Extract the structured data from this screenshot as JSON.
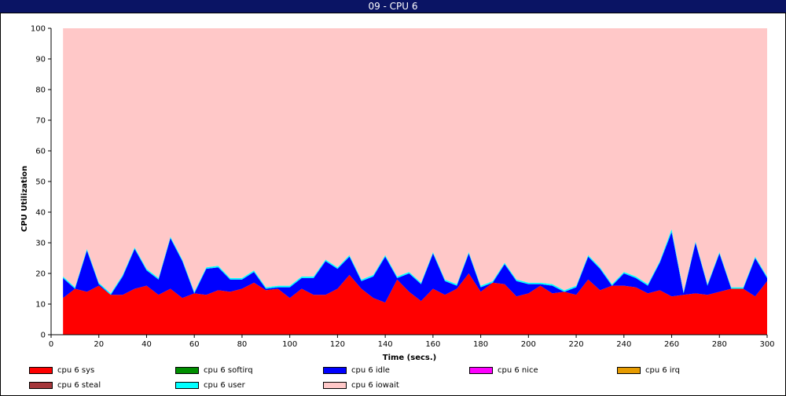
{
  "window": {
    "title": "09 - CPU 6"
  },
  "chart_data": {
    "type": "area",
    "stacked": true,
    "xlabel": "Time (secs.)",
    "ylabel": "CPU Utilization",
    "xlim": [
      0,
      300
    ],
    "ylim": [
      0,
      100
    ],
    "xticks": [
      0,
      20,
      40,
      60,
      80,
      100,
      120,
      140,
      160,
      180,
      200,
      220,
      240,
      260,
      280,
      300
    ],
    "yticks": [
      0,
      10,
      20,
      30,
      40,
      50,
      60,
      70,
      80,
      90,
      100
    ],
    "grid": false,
    "legend_position": "bottom",
    "x": [
      5,
      10,
      15,
      20,
      25,
      30,
      35,
      40,
      45,
      50,
      55,
      60,
      65,
      70,
      75,
      80,
      85,
      90,
      95,
      100,
      105,
      110,
      115,
      120,
      125,
      130,
      135,
      140,
      145,
      150,
      155,
      160,
      165,
      170,
      175,
      180,
      185,
      190,
      195,
      200,
      205,
      210,
      215,
      220,
      225,
      230,
      235,
      240,
      245,
      250,
      255,
      260,
      265,
      270,
      275,
      280,
      285,
      290,
      295,
      300
    ],
    "series": [
      {
        "name": "cpu 6 sys",
        "color": "#ff0000",
        "values": [
          12,
          15,
          14,
          16,
          13,
          13,
          15,
          16,
          13,
          15,
          12,
          13.5,
          13,
          14.5,
          14,
          15,
          17,
          14.5,
          15,
          12,
          15,
          13,
          13,
          15,
          19.5,
          15,
          12,
          10.5,
          18,
          14,
          11,
          15,
          13,
          15,
          20,
          14,
          17,
          16.5,
          12.5,
          13.5,
          16,
          13.5,
          14,
          13,
          18,
          14.5,
          16,
          16,
          15.5,
          13.5,
          14.5,
          12.5,
          13,
          13.5,
          13,
          14,
          15,
          15,
          12.5,
          17.5
        ]
      },
      {
        "name": "cpu 6 softirq",
        "color": "#008f00",
        "values": [
          0,
          0,
          0,
          0,
          0,
          0,
          0,
          0,
          0,
          0,
          0,
          0,
          0,
          0,
          0,
          0,
          0,
          0,
          0,
          0,
          0,
          0,
          0,
          0,
          0,
          0,
          0,
          0,
          0,
          0,
          0,
          0,
          0,
          0,
          0,
          0,
          0,
          0,
          0,
          0,
          0,
          0,
          0,
          0,
          0,
          0,
          0,
          0,
          0,
          0,
          0,
          0,
          0,
          0,
          0,
          0,
          0,
          0,
          0,
          0
        ]
      },
      {
        "name": "cpu 6 idle",
        "color": "#0000ff",
        "values": [
          6.5,
          0,
          13.5,
          0.5,
          0,
          6,
          13,
          5,
          5,
          16.5,
          12,
          0,
          8.5,
          7.5,
          4,
          3,
          3.5,
          0.5,
          0.5,
          3.5,
          3.5,
          5.5,
          11,
          6.5,
          6,
          2.5,
          7,
          15,
          0.5,
          6,
          5.5,
          11.5,
          4.5,
          1,
          6.5,
          1.5,
          0,
          6.5,
          5,
          3,
          0.5,
          2.5,
          0,
          2.5,
          7.5,
          7,
          0,
          4,
          3,
          2.5,
          9,
          21,
          0.5,
          16.5,
          3,
          12.5,
          0,
          0,
          12.5,
          1
        ]
      },
      {
        "name": "cpu 6 nice",
        "color": "#ff00ff",
        "values": [
          0,
          0,
          0,
          0,
          0,
          0,
          0,
          0,
          0,
          0,
          0,
          0,
          0,
          0,
          0,
          0,
          0,
          0,
          0,
          0,
          0,
          0,
          0,
          0,
          0,
          0,
          0,
          0,
          0,
          0,
          0,
          0,
          0,
          0,
          0,
          0,
          0,
          0,
          0,
          0,
          0,
          0,
          0,
          0,
          0,
          0,
          0,
          0,
          0,
          0,
          0,
          0,
          0,
          0,
          0,
          0,
          0,
          0,
          0,
          0
        ]
      },
      {
        "name": "cpu 6 irq",
        "color": "#e69b00",
        "values": [
          0,
          0,
          0,
          0,
          0,
          0,
          0,
          0,
          0,
          0,
          0,
          0,
          0,
          0,
          0,
          0,
          0,
          0,
          0,
          0,
          0,
          0,
          0,
          0,
          0,
          0,
          0,
          0,
          0,
          0,
          0,
          0,
          0,
          0,
          0,
          0,
          0,
          0,
          0,
          0,
          0,
          0,
          0,
          0,
          0,
          0,
          0,
          0,
          0,
          0,
          0,
          0,
          0,
          0,
          0,
          0,
          0,
          0,
          0,
          0
        ]
      },
      {
        "name": "cpu 6 steal",
        "color": "#a5373b",
        "values": [
          0,
          0,
          0,
          0,
          0,
          0,
          0,
          0,
          0,
          0,
          0,
          0,
          0,
          0,
          0,
          0,
          0,
          0,
          0,
          0,
          0,
          0,
          0,
          0,
          0,
          0,
          0,
          0,
          0,
          0,
          0,
          0,
          0,
          0,
          0,
          0,
          0,
          0,
          0,
          0,
          0,
          0,
          0,
          0,
          0,
          0,
          0,
          0,
          0,
          0,
          0,
          0,
          0,
          0,
          0,
          0,
          0,
          0,
          0,
          0
        ]
      },
      {
        "name": "cpu 6 user",
        "color": "#00ffff",
        "values": [
          0.5,
          0.5,
          0.5,
          0.5,
          0.5,
          0.5,
          0.5,
          0.5,
          0.5,
          0.5,
          0.5,
          0.5,
          0.5,
          0.5,
          0.5,
          0.5,
          0.5,
          0.5,
          0.5,
          0.5,
          0.5,
          0.5,
          0.5,
          0.5,
          0.5,
          0.5,
          0.5,
          0.5,
          0.5,
          0.5,
          0.5,
          0.5,
          0.5,
          0.5,
          0.5,
          0.5,
          0.5,
          0.5,
          0.5,
          0.5,
          0.5,
          0.5,
          0.5,
          0.5,
          0.5,
          0.5,
          0.5,
          0.5,
          0.5,
          0.5,
          0.5,
          1,
          0.5,
          0.5,
          0.5,
          0.5,
          0.5,
          0.5,
          0.5,
          0.5
        ]
      },
      {
        "name": "cpu 6 iowait",
        "color": "#ffc8c8",
        "fill_to": 100
      }
    ],
    "legend": [
      {
        "label": "cpu 6 sys",
        "color": "#ff0000"
      },
      {
        "label": "cpu 6 softirq",
        "color": "#008f00"
      },
      {
        "label": "cpu 6 idle",
        "color": "#0000ff"
      },
      {
        "label": "cpu 6 nice",
        "color": "#ff00ff"
      },
      {
        "label": "cpu 6 irq",
        "color": "#e69b00"
      },
      {
        "label": "cpu 6 steal",
        "color": "#a5373b"
      },
      {
        "label": "cpu 6 user",
        "color": "#00ffff"
      },
      {
        "label": "cpu 6 iowait",
        "color": "#ffc8c8"
      }
    ]
  }
}
